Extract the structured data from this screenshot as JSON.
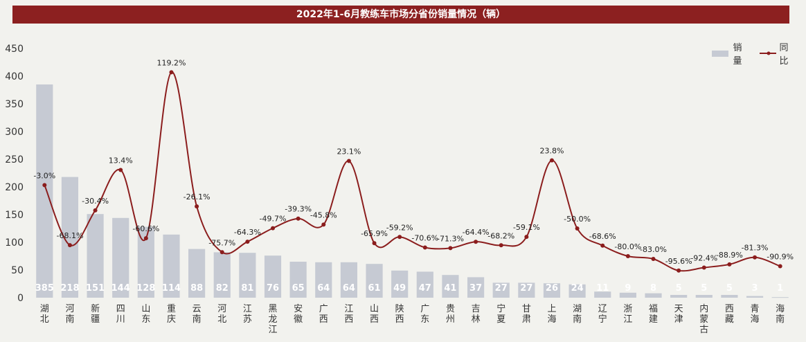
{
  "title": "2022年1-6月教练车市场分省份销量情况（辆）",
  "legend": {
    "bar": "销量",
    "line": "同比"
  },
  "colors": {
    "title_bg": "#8c2020",
    "bar": "#c6cad3",
    "line": "#8b1d1d"
  },
  "chart_data": {
    "type": "bar",
    "categories": [
      "湖北",
      "河南",
      "新疆",
      "四川",
      "山东",
      "重庆",
      "云南",
      "河北",
      "江苏",
      "黑龙江",
      "安徽",
      "广西",
      "江西",
      "山西",
      "陕西",
      "广东",
      "贵州",
      "吉林",
      "宁夏",
      "甘肃",
      "上海",
      "湖南",
      "辽宁",
      "浙江",
      "福建",
      "天津",
      "内蒙古",
      "西藏",
      "青海",
      "海南"
    ],
    "series": [
      {
        "name": "销量",
        "type": "bar",
        "values": [
          385,
          218,
          151,
          144,
          128,
          114,
          88,
          82,
          81,
          76,
          65,
          64,
          64,
          61,
          49,
          47,
          41,
          37,
          27,
          27,
          26,
          24,
          11,
          9,
          8,
          5,
          5,
          5,
          3,
          1
        ]
      },
      {
        "name": "同比",
        "type": "line",
        "values": [
          -3.0,
          -68.1,
          -30.4,
          13.4,
          -60.6,
          119.2,
          -26.1,
          -75.7,
          -64.3,
          -49.7,
          -39.3,
          -45.8,
          23.1,
          -65.9,
          -59.2,
          -70.6,
          -71.3,
          -64.4,
          -68.2,
          -59.1,
          23.8,
          -50.0,
          -68.6,
          -80.0,
          -83.0,
          -95.6,
          -92.4,
          -88.9,
          -81.3,
          -90.9
        ],
        "labels": [
          "-3.0%",
          "-68.1%",
          "-30.4%",
          "13.4%",
          "-60.6%",
          "119.2%",
          "-26.1%",
          "-75.7%",
          "-64.3%",
          "-49.7%",
          "-39.3%",
          "-45.8%",
          "23.1%",
          "-65.9%",
          "-59.2%",
          "-70.6%",
          "-71.3%",
          "-64.4%",
          "-68.2%",
          "-59.1%",
          "23.8%",
          "-50.0%",
          "-68.6%",
          "-80.0%",
          "-83.0%",
          "-95.6%",
          "-92.4%",
          "-88.9%",
          "-81.3%",
          "-90.9%"
        ]
      }
    ],
    "yticks": [
      0,
      50,
      100,
      150,
      200,
      250,
      300,
      350,
      400,
      450
    ],
    "ylim": [
      0,
      450
    ],
    "y2lim": [
      -125,
      145
    ],
    "legend_position": "top-right"
  }
}
